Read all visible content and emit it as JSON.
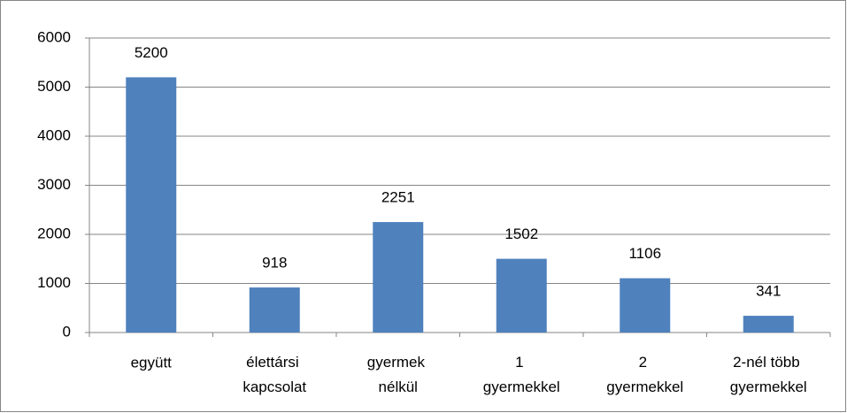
{
  "chart_data": {
    "type": "bar",
    "categories": [
      "együtt",
      "élettársi kapcsolat",
      "gyermek nélkül",
      "1 gyermekkel",
      "2 gyermekkel",
      "2-nél több gyermekkel"
    ],
    "values": [
      5200,
      918,
      2251,
      1502,
      1106,
      341
    ],
    "color": "#4f81bd",
    "ylim": [
      0,
      6000
    ],
    "yticks": [
      0,
      1000,
      2000,
      3000,
      4000,
      5000,
      6000
    ],
    "grid": true
  }
}
